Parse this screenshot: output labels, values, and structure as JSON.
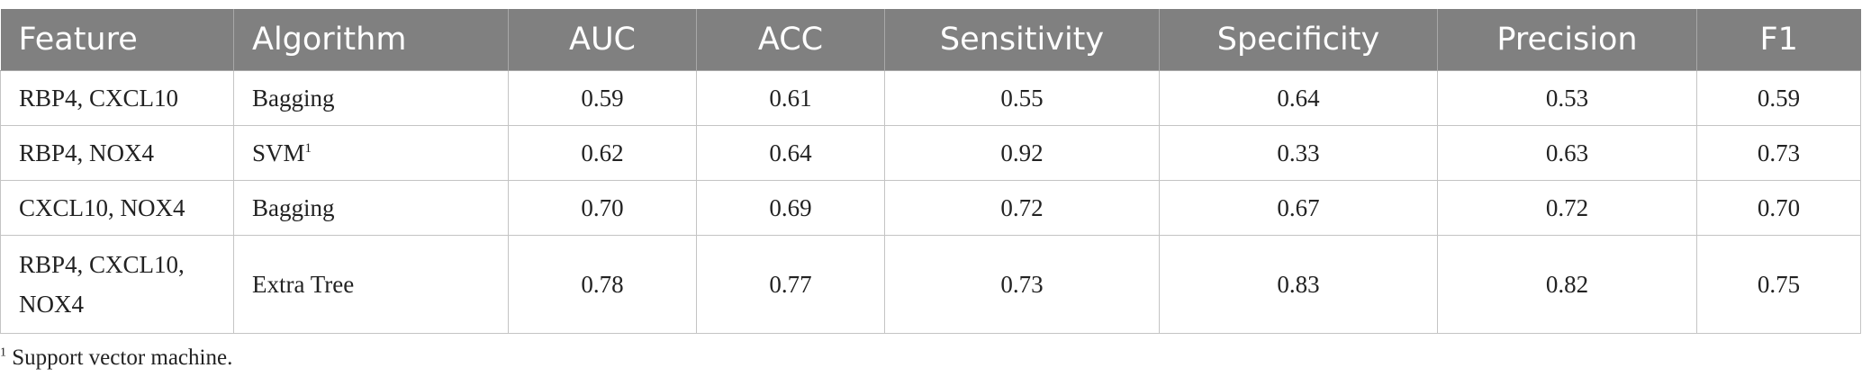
{
  "table": {
    "headers": [
      "Feature",
      "Algorithm",
      "AUC",
      "ACC",
      "Sensitivity",
      "Specificity",
      "Precision",
      "F1"
    ],
    "rows": [
      {
        "feature": "RBP4, CXCL10",
        "algorithm": "Bagging",
        "sup": "",
        "auc": "0.59",
        "acc": "0.61",
        "sensitivity": "0.55",
        "specificity": "0.64",
        "precision": "0.53",
        "f1": "0.59"
      },
      {
        "feature": "RBP4, NOX4",
        "algorithm": "SVM",
        "sup": "1",
        "auc": "0.62",
        "acc": "0.64",
        "sensitivity": "0.92",
        "specificity": "0.33",
        "precision": "0.63",
        "f1": "0.73"
      },
      {
        "feature": "CXCL10, NOX4",
        "algorithm": "Bagging",
        "sup": "",
        "auc": "0.70",
        "acc": "0.69",
        "sensitivity": "0.72",
        "specificity": "0.67",
        "precision": "0.72",
        "f1": "0.70"
      },
      {
        "feature": "RBP4, CXCL10, NOX4",
        "algorithm": "Extra Tree",
        "sup": "",
        "auc": "0.78",
        "acc": "0.77",
        "sensitivity": "0.73",
        "specificity": "0.83",
        "precision": "0.82",
        "f1": "0.75"
      }
    ]
  },
  "footnote": {
    "marker": "1",
    "text": " Support vector machine."
  }
}
